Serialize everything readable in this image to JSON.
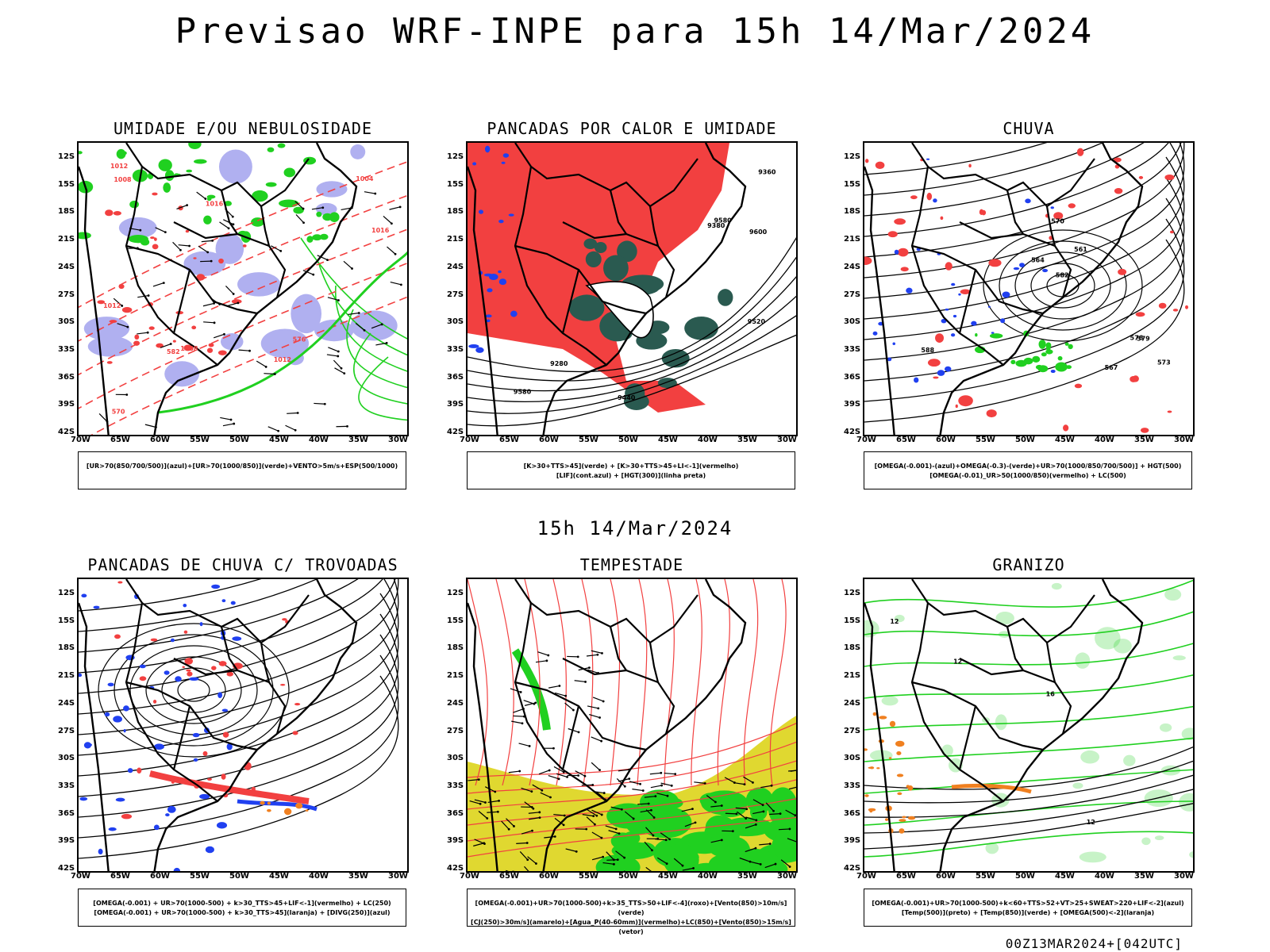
{
  "title": "Previsao WRF-INPE  para 15h 14/Mar/2024",
  "mid_time": "15h 14/Mar/2024",
  "run_label": "00Z13MAR2024+[042UTC]",
  "lat_ticks": [
    "12S",
    "15S",
    "18S",
    "21S",
    "24S",
    "27S",
    "30S",
    "33S",
    "36S",
    "39S",
    "42S"
  ],
  "lon_ticks": [
    "70W",
    "65W",
    "60W",
    "55W",
    "50W",
    "45W",
    "40W",
    "35W",
    "30W"
  ],
  "colors": {
    "red": "#f24040",
    "green": "#20d020",
    "blue": "#2040f0",
    "lavender": "#b0b0f0",
    "darkgreen": "#2a5a50",
    "yellow": "#e0d830",
    "orange": "#f08020"
  },
  "panels": [
    {
      "title": "UMIDADE E/OU NEBULOSIDADE",
      "legend": [
        "[UR>70(850/700/500)](azul)+[UR>70(1000/850)](verde)+VENTO>5m/s+ESP(500/1000)"
      ]
    },
    {
      "title": "PANCADAS POR CALOR E UMIDADE",
      "legend": [
        "[K>30+TTS>45](verde) + [K>30+TTS>45+LI<-1](vermelho)",
        "[LIF](cont.azul) + [HGT(300)](linha preta)"
      ]
    },
    {
      "title": "CHUVA",
      "legend": [
        "[OMEGA(-0.001)-(azul)+OMEGA(-0.3)-(verde)+UR>70(1000/850/700/500)] + HGT(500)",
        "[OMEGA(-0.01)_UR>50(1000/850)(vermelho) + LC(500)"
      ]
    },
    {
      "title": "PANCADAS DE CHUVA C/ TROVOADAS",
      "legend": [
        "[OMEGA(-0.001) + UR>70(1000-500) + k>30_TTS>45+LIF<-1](vermelho) + LC(250)",
        "[OMEGA(-0.001) + UR>70(1000-500) + k>30_TTS>45](laranja) + [DIVG(250)](azul)"
      ]
    },
    {
      "title": "TEMPESTADE",
      "legend": [
        "[OMEGA(-0.001)+UR>70(1000-500)+k>35_TTS>50+LIF<-4](roxo)+[Vento(850)>10m/s](verde)",
        "[CJ(250)>30m/s](amarelo)+[Agua_P(40-60mm)](vermelho)+LC(850)+[Vento(850)>15m/s](vetor)"
      ]
    },
    {
      "title": "GRANIZO",
      "legend": [
        "[OMEGA(-0.001)+UR>70(1000-500)+k<60+TTS>52+VT>25+SWEAT>220+LIF<-2](azul)",
        "[Temp(500)](preto) + [Temp(850)](verde) + [OMEGA(500)<-2](laranja)"
      ]
    }
  ],
  "contour_labels": {
    "p0": [
      "1008",
      "1012",
      "1012",
      "1004",
      "1016",
      "1012",
      "1016",
      "1008",
      "570",
      "576",
      "582"
    ],
    "p1": [
      "9580",
      "9580",
      "9520",
      "9440",
      "9380",
      "9280",
      "9600",
      "9360"
    ],
    "p2": [
      "588",
      "582",
      "576",
      "573",
      "570",
      "567",
      "564",
      "561",
      "579"
    ],
    "p5": [
      "12",
      "12",
      "12",
      "16"
    ]
  }
}
